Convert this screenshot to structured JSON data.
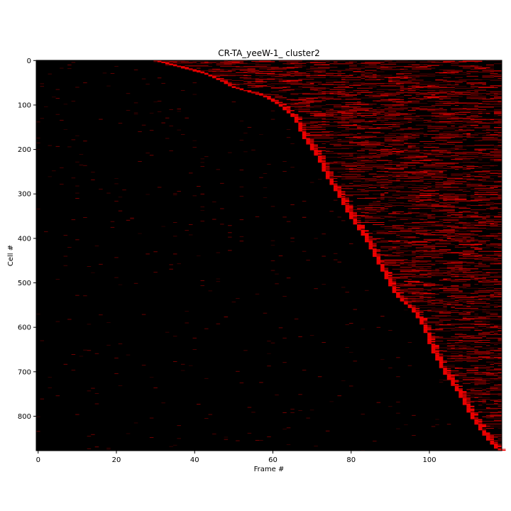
{
  "chart_data": {
    "type": "heatmap",
    "title": "CR-TA_yeeW-1_ cluster2",
    "xlabel": "Frame #",
    "ylabel": "Cell #",
    "xlim": [
      -0.5,
      118.5
    ],
    "ylim": [
      877.5,
      -0.5
    ],
    "x_ticks": [
      0,
      20,
      40,
      60,
      80,
      100
    ],
    "y_ticks": [
      0,
      100,
      200,
      300,
      400,
      500,
      600,
      700,
      800
    ],
    "n_frames": 119,
    "n_cells": 878,
    "colormap": {
      "low": "#000000",
      "high": "#ff0000"
    },
    "onset_curve": {
      "cells": [
        0,
        30,
        50,
        60,
        80,
        100,
        130,
        170,
        220,
        260,
        300,
        350,
        400,
        450,
        500,
        530,
        560,
        600,
        650,
        700,
        750,
        800,
        850,
        877
      ],
      "frames": [
        30,
        43,
        48,
        50,
        58,
        62,
        66,
        68,
        72,
        74,
        77,
        80,
        84,
        87,
        90,
        92,
        96,
        99,
        101,
        104,
        108,
        111,
        115,
        118
      ]
    }
  },
  "background_color": "#ffffff"
}
